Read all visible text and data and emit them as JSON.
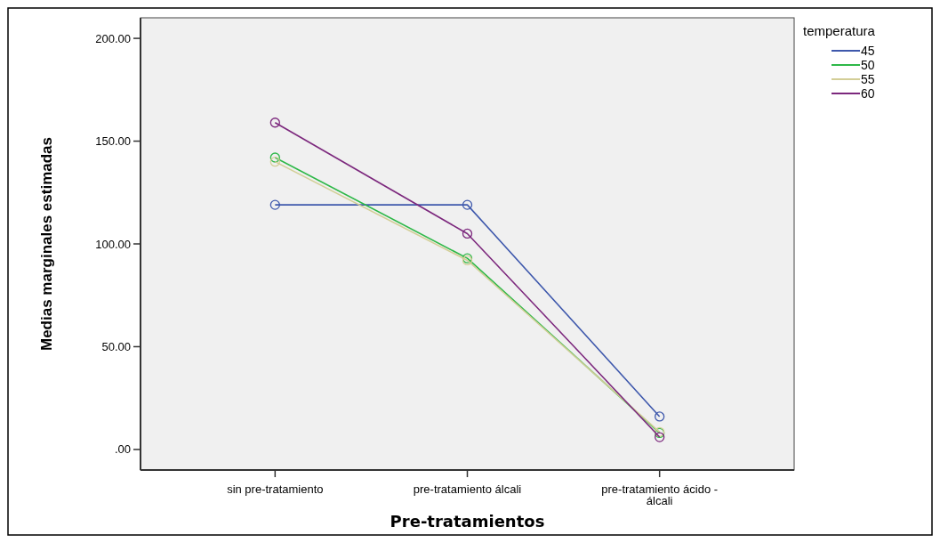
{
  "chart_data": {
    "type": "line",
    "xlabel": "Pre-tratamientos",
    "ylabel": "Medias marginales estimadas",
    "legend_title": "temperatura",
    "categories": [
      "sin pre-tratamiento",
      "pre-tratamiento álcali",
      "pre-tratamiento ácido - álcali"
    ],
    "series": [
      {
        "name": "45",
        "color": "#3e58ac",
        "values": [
          119,
          119,
          16
        ]
      },
      {
        "name": "50",
        "color": "#2eb848",
        "values": [
          142,
          93,
          8
        ]
      },
      {
        "name": "55",
        "color": "#d3ce97",
        "values": [
          140,
          92,
          8.5
        ]
      },
      {
        "name": "60",
        "color": "#7c287d",
        "values": [
          159,
          105,
          6
        ]
      }
    ],
    "ylim": [
      -10,
      210
    ],
    "yticks": [
      {
        "value": 0,
        "label": ".00"
      },
      {
        "value": 50,
        "label": "50.00"
      },
      {
        "value": 100,
        "label": "100.00"
      },
      {
        "value": 150,
        "label": "150.00"
      },
      {
        "value": 200,
        "label": "200.00"
      }
    ],
    "grid": false,
    "legend": "top right",
    "marker": "circle",
    "line_style": "solid"
  }
}
